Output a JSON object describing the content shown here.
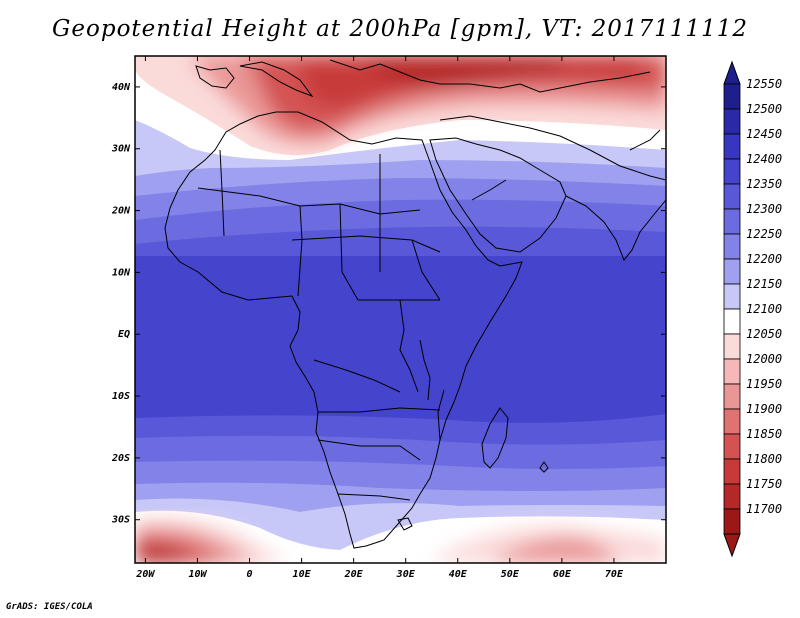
{
  "title": "Geopotential Height at 200hPa [gpm], VT: 2017111112",
  "footer": "GrADS: IGES/COLA",
  "map": {
    "lon_range": [
      -22,
      80
    ],
    "lat_range": [
      -37,
      45
    ],
    "x_tick_labels": [
      "20W",
      "10W",
      "0",
      "10E",
      "20E",
      "30E",
      "40E",
      "50E",
      "60E",
      "70E"
    ],
    "y_tick_labels": [
      "40N",
      "30N",
      "20N",
      "10N",
      "EQ",
      "10S",
      "20S",
      "30S"
    ]
  },
  "colorbar": {
    "levels": [
      "12550",
      "12500",
      "12450",
      "12400",
      "12350",
      "12300",
      "12250",
      "12200",
      "12150",
      "12100",
      "12050",
      "12000",
      "11950",
      "11900",
      "11850",
      "11800",
      "11750",
      "11700"
    ],
    "colors": [
      "#1e1e8c",
      "#2a2aa8",
      "#3636c0",
      "#4444cc",
      "#5858d8",
      "#6c6ce0",
      "#8282e8",
      "#a0a0f0",
      "#c8c8f8",
      "#ffffff",
      "#fbdada",
      "#f4b8b8",
      "#ea9696",
      "#e07272",
      "#d45252",
      "#c83a3a",
      "#b42828",
      "#9c1818"
    ]
  }
}
